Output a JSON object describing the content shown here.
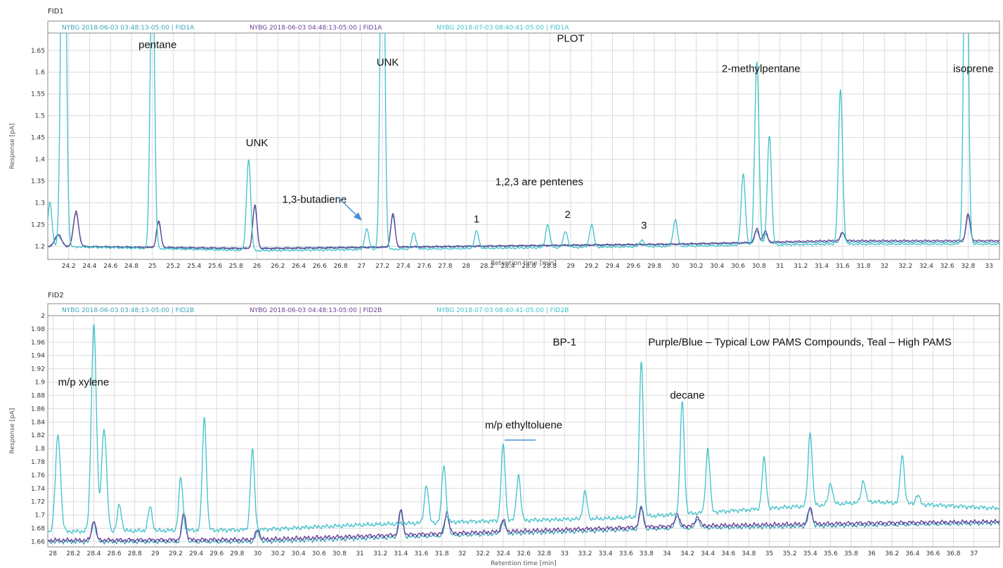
{
  "colors": {
    "series_a": "#3aa6b8",
    "series_b": "#6a3f98",
    "series_c": "#3fc1c9",
    "arrow": "#4a8fd6"
  },
  "chart_data": [
    {
      "type": "line",
      "title": "FID1",
      "xlabel": "Retention time [min]",
      "ylabel": "Response [pA]",
      "xlim": [
        24.0,
        33.1
      ],
      "ylim": [
        1.17,
        1.69
      ],
      "x_ticks": [
        24.2,
        24.4,
        24.6,
        24.8,
        25,
        25.2,
        25.4,
        25.6,
        25.8,
        26,
        26.2,
        26.4,
        26.6,
        26.8,
        27,
        27.2,
        27.4,
        27.6,
        27.8,
        28,
        28.2,
        28.4,
        28.6,
        28.8,
        29,
        29.2,
        29.4,
        29.6,
        29.8,
        30,
        30.2,
        30.4,
        30.6,
        30.8,
        31,
        31.2,
        31.4,
        31.6,
        31.8,
        32,
        32.2,
        32.4,
        32.6,
        32.8,
        33
      ],
      "x_tick_labels": [
        "24.2",
        "24.4",
        "24.6",
        "24.8",
        "25",
        "25.2",
        "25.4",
        "25.6",
        "25.8",
        "26",
        "26.2",
        "26.4",
        "26.6",
        "26.8",
        "27",
        "27.2",
        "27.4",
        "27.6",
        "27.8",
        "28",
        "28.2",
        "28.4",
        "28.6",
        "28.8",
        "29",
        "29.2",
        "29.4",
        "29.6",
        "29.8",
        "30",
        "30.2",
        "30.4",
        "30.6",
        "30.8",
        "31",
        "31.2",
        "31.4",
        "31.6",
        "31.8",
        "32",
        "32.2",
        "32.4",
        "32.6",
        "32.8",
        "33"
      ],
      "y_ticks": [
        1.2,
        1.25,
        1.3,
        1.35,
        1.4,
        1.45,
        1.5,
        1.55,
        1.6,
        1.65
      ],
      "y_tick_labels": [
        "1.2",
        "1.25",
        "1.3",
        "1.35",
        "1.4",
        "1.45",
        "1.5",
        "1.55",
        "1.6",
        "1.65"
      ],
      "grid": true,
      "legend": "top",
      "series": [
        {
          "name": "NYBG 2018-06-03 03:48:13-05:00 | FID1A",
          "color": "#3aa6b8",
          "baseline": [
            [
              24.0,
              1.2
            ],
            [
              26.0,
              1.195
            ],
            [
              28.0,
              1.2
            ],
            [
              30.0,
              1.205
            ],
            [
              31.5,
              1.21
            ],
            [
              33.1,
              1.21
            ]
          ],
          "peaks": [
            [
              24.1,
              1.225,
              0.03
            ],
            [
              24.27,
              1.275,
              0.025
            ],
            [
              25.06,
              1.255,
              0.02
            ],
            [
              25.98,
              1.29,
              0.02
            ],
            [
              27.3,
              1.27,
              0.02
            ],
            [
              30.78,
              1.235,
              0.02
            ],
            [
              30.86,
              1.23,
              0.02
            ],
            [
              31.6,
              1.23,
              0.02
            ],
            [
              32.8,
              1.27,
              0.02
            ]
          ]
        },
        {
          "name": "NYBG 2018-06-03 04:48:13-05:00 | FID1A",
          "color": "#6a3f98",
          "baseline": [
            [
              24.0,
              1.2
            ],
            [
              26.0,
              1.195
            ],
            [
              28.0,
              1.2
            ],
            [
              30.0,
              1.205
            ],
            [
              31.5,
              1.213
            ],
            [
              33.1,
              1.213
            ]
          ],
          "peaks": [
            [
              24.1,
              1.228,
              0.03
            ],
            [
              24.27,
              1.28,
              0.025
            ],
            [
              25.06,
              1.258,
              0.02
            ],
            [
              25.98,
              1.295,
              0.02
            ],
            [
              27.3,
              1.275,
              0.02
            ],
            [
              30.78,
              1.24,
              0.02
            ],
            [
              30.86,
              1.235,
              0.02
            ],
            [
              31.6,
              1.232,
              0.02
            ],
            [
              32.8,
              1.275,
              0.02
            ]
          ]
        },
        {
          "name": "NYBG 2018-07-03 08:40:41-05:00 | FID1A",
          "color": "#3fc1c9",
          "baseline": [
            [
              24.0,
              1.2
            ],
            [
              26.0,
              1.19
            ],
            [
              28.0,
              1.195
            ],
            [
              30.0,
              1.2
            ],
            [
              31.5,
              1.205
            ],
            [
              33.1,
              1.205
            ]
          ],
          "peaks": [
            [
              24.02,
              1.3,
              0.02
            ],
            [
              24.15,
              2.4,
              0.022
            ],
            [
              25.0,
              1.9,
              0.02
            ],
            [
              25.92,
              1.4,
              0.02
            ],
            [
              27.05,
              1.24,
              0.02
            ],
            [
              27.2,
              2.2,
              0.02
            ],
            [
              27.5,
              1.23,
              0.02
            ],
            [
              28.1,
              1.235,
              0.02
            ],
            [
              28.78,
              1.25,
              0.02
            ],
            [
              28.95,
              1.235,
              0.02
            ],
            [
              29.2,
              1.25,
              0.02
            ],
            [
              29.68,
              1.215,
              0.02
            ],
            [
              30.0,
              1.262,
              0.02
            ],
            [
              30.65,
              1.365,
              0.02
            ],
            [
              30.78,
              1.625,
              0.02
            ],
            [
              30.9,
              1.455,
              0.02
            ],
            [
              31.58,
              1.56,
              0.02
            ],
            [
              32.78,
              2.2,
              0.02
            ]
          ]
        }
      ],
      "annotations": [
        {
          "text": "pentane",
          "x": 25.05,
          "y": 1.655
        },
        {
          "text": "UNK",
          "x": 27.25,
          "y": 1.615
        },
        {
          "text": "PLOT",
          "x": 29.0,
          "y": 1.67
        },
        {
          "text": "UNK",
          "x": 26.0,
          "y": 1.43
        },
        {
          "text": "2-methylpentane",
          "x": 30.82,
          "y": 1.6
        },
        {
          "text": "isoprene",
          "x": 32.85,
          "y": 1.6
        },
        {
          "text": "1,3-butadiene",
          "x": 26.55,
          "y": 1.3
        },
        {
          "text": "1,2,3 are pentenes",
          "x": 28.7,
          "y": 1.34
        },
        {
          "text": "1",
          "x": 28.1,
          "y": 1.255
        },
        {
          "text": "2",
          "x": 28.97,
          "y": 1.265
        },
        {
          "text": "3",
          "x": 29.7,
          "y": 1.24
        }
      ]
    },
    {
      "type": "line",
      "title": "FID2",
      "xlabel": "Retention time [min]",
      "ylabel": "Response [pA]",
      "xlim": [
        27.95,
        37.25
      ],
      "ylim": [
        1.652,
        2.0
      ],
      "x_ticks": [
        28,
        28.2,
        28.4,
        28.6,
        28.8,
        29,
        29.2,
        29.4,
        29.6,
        29.8,
        30,
        30.2,
        30.4,
        30.6,
        30.8,
        31,
        31.2,
        31.4,
        31.6,
        31.8,
        32,
        32.2,
        32.4,
        32.6,
        32.8,
        33,
        33.2,
        33.4,
        33.6,
        33.8,
        34,
        34.2,
        34.4,
        34.6,
        34.8,
        35,
        35.2,
        35.4,
        35.6,
        35.8,
        36,
        36.2,
        36.4,
        36.6,
        36.8,
        37
      ],
      "x_tick_labels": [
        "28",
        "28.2",
        "28.4",
        "28.6",
        "28.8",
        "29",
        "29.2",
        "29.4",
        "29.6",
        "29.8",
        "30",
        "30.2",
        "30.4",
        "30.6",
        "30.8",
        "31",
        "31.2",
        "31.4",
        "31.6",
        "31.8",
        "32",
        "32.2",
        "32.4",
        "32.6",
        "32.8",
        "33",
        "33.2",
        "33.4",
        "33.6",
        "33.8",
        "34",
        "34.2",
        "34.4",
        "34.6",
        "34.8",
        "35",
        "35.2",
        "35.4",
        "35.6",
        "35.8",
        "36",
        "36.2",
        "36.4",
        "36.6",
        "36.8",
        "37"
      ],
      "y_ticks": [
        1.66,
        1.68,
        1.7,
        1.72,
        1.74,
        1.76,
        1.78,
        1.8,
        1.82,
        1.84,
        1.86,
        1.88,
        1.9,
        1.92,
        1.94,
        1.96,
        1.98,
        2
      ],
      "y_tick_labels": [
        "1.66",
        "1.68",
        "1.7",
        "1.72",
        "1.74",
        "1.76",
        "1.78",
        "1.8",
        "1.82",
        "1.84",
        "1.86",
        "1.88",
        "1.9",
        "1.92",
        "1.94",
        "1.96",
        "1.98",
        "2"
      ],
      "grid": true,
      "legend": "top",
      "series": [
        {
          "name": "NYBG 2018-06-03 03:48:13-05:00 | FID2B",
          "color": "#3aa6b8",
          "baseline": [
            [
              28.0,
              1.66
            ],
            [
              30.0,
              1.66
            ],
            [
              32.0,
              1.67
            ],
            [
              34.0,
              1.68
            ],
            [
              36.0,
              1.685
            ],
            [
              37.25,
              1.688
            ]
          ],
          "peaks": [
            [
              28.4,
              1.69,
              0.02
            ],
            [
              29.28,
              1.7,
              0.02
            ],
            [
              30.0,
              1.675,
              0.02
            ],
            [
              31.4,
              1.705,
              0.02
            ],
            [
              31.85,
              1.7,
              0.02
            ],
            [
              32.4,
              1.69,
              0.02
            ],
            [
              33.75,
              1.71,
              0.02
            ],
            [
              34.1,
              1.7,
              0.02
            ],
            [
              34.3,
              1.695,
              0.02
            ],
            [
              35.4,
              1.71,
              0.02
            ]
          ]
        },
        {
          "name": "NYBG 2018-06-03 04:48:13-05:00 | FID2B",
          "color": "#6a3f98",
          "baseline": [
            [
              28.0,
              1.662
            ],
            [
              30.0,
              1.663
            ],
            [
              32.0,
              1.673
            ],
            [
              34.0,
              1.683
            ],
            [
              36.0,
              1.688
            ],
            [
              37.25,
              1.69
            ]
          ],
          "peaks": [
            [
              28.4,
              1.692,
              0.02
            ],
            [
              29.28,
              1.703,
              0.02
            ],
            [
              30.0,
              1.678,
              0.02
            ],
            [
              31.4,
              1.708,
              0.02
            ],
            [
              31.85,
              1.705,
              0.02
            ],
            [
              32.4,
              1.693,
              0.02
            ],
            [
              33.75,
              1.712,
              0.02
            ],
            [
              34.1,
              1.703,
              0.02
            ],
            [
              34.3,
              1.698,
              0.02
            ],
            [
              35.4,
              1.712,
              0.02
            ]
          ]
        },
        {
          "name": "NYBG 2018-07-03 08:40:41-05:00 | FID2B",
          "color": "#3fc1c9",
          "baseline": [
            [
              28.0,
              1.675
            ],
            [
              30.0,
              1.678
            ],
            [
              31.0,
              1.685
            ],
            [
              32.0,
              1.69
            ],
            [
              33.5,
              1.695
            ],
            [
              34.5,
              1.705
            ],
            [
              36.0,
              1.72
            ],
            [
              37.25,
              1.71
            ]
          ],
          "peaks": [
            [
              28.05,
              1.82,
              0.025
            ],
            [
              28.4,
              1.985,
              0.025
            ],
            [
              28.5,
              1.83,
              0.025
            ],
            [
              28.65,
              1.715,
              0.02
            ],
            [
              28.95,
              1.712,
              0.02
            ],
            [
              29.25,
              1.755,
              0.02
            ],
            [
              29.48,
              1.846,
              0.02
            ],
            [
              29.95,
              1.798,
              0.02
            ],
            [
              31.65,
              1.745,
              0.02
            ],
            [
              31.82,
              1.775,
              0.02
            ],
            [
              32.4,
              1.805,
              0.02
            ],
            [
              32.55,
              1.76,
              0.02
            ],
            [
              33.2,
              1.735,
              0.02
            ],
            [
              33.75,
              1.93,
              0.02
            ],
            [
              34.15,
              1.87,
              0.02
            ],
            [
              34.4,
              1.8,
              0.02
            ],
            [
              34.95,
              1.785,
              0.02
            ],
            [
              35.4,
              1.825,
              0.02
            ],
            [
              35.6,
              1.748,
              0.02
            ],
            [
              35.92,
              1.752,
              0.02
            ],
            [
              36.3,
              1.79,
              0.02
            ],
            [
              36.45,
              1.73,
              0.02
            ]
          ]
        }
      ],
      "annotations": [
        {
          "text": "m/p xylene",
          "x": 28.3,
          "y": 1.895
        },
        {
          "text": "BP-1",
          "x": 33.0,
          "y": 1.955
        },
        {
          "text": "Purple/Blue – Typical Low PAMS Compounds, Teal – High PAMS",
          "x": 35.3,
          "y": 1.955
        },
        {
          "text": "decane",
          "x": 34.2,
          "y": 1.875
        },
        {
          "text": "m/p ethyltoluene",
          "x": 32.6,
          "y": 1.83
        }
      ]
    }
  ]
}
